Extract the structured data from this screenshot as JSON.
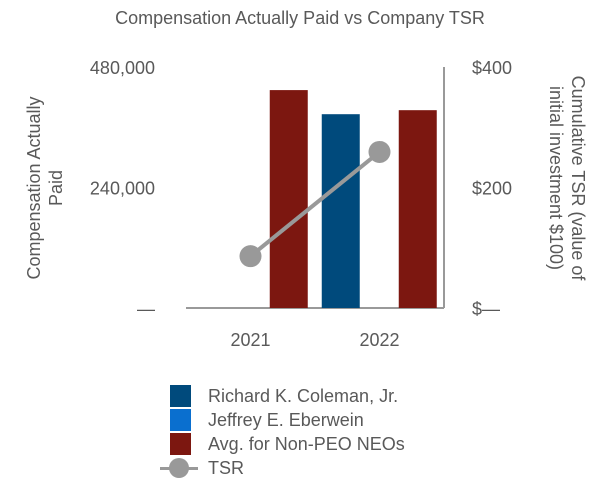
{
  "chart_data": {
    "type": "bar",
    "title": "Compensation Actually Paid vs Company TSR",
    "categories": [
      "2021",
      "2022"
    ],
    "ylabel": "Compensation Actually Paid",
    "y2label": "Cumulative TSR (value of initial investment $100)",
    "ylim": [
      0,
      480000
    ],
    "y_ticks": [
      "—",
      "240,000",
      "480,000"
    ],
    "y2lim": [
      0,
      400
    ],
    "y2_ticks": [
      "$—",
      "$200",
      "$400"
    ],
    "series": [
      {
        "name": "Richard K. Coleman, Jr.",
        "type": "bar",
        "color": "#004A7C",
        "values": [
          null,
          386000
        ]
      },
      {
        "name": "Jeffrey E. Eberwein",
        "type": "bar",
        "color": "#0A6FCF",
        "values": [
          null,
          null
        ]
      },
      {
        "name": "Avg. for Non-PEO NEOs",
        "type": "bar",
        "color": "#7C1710",
        "values": [
          434000,
          394000
        ]
      },
      {
        "name": "TSR",
        "type": "line",
        "axis": "right",
        "color": "#999999",
        "values": [
          86,
          259
        ]
      }
    ],
    "grid": false,
    "legend": "bottom"
  }
}
